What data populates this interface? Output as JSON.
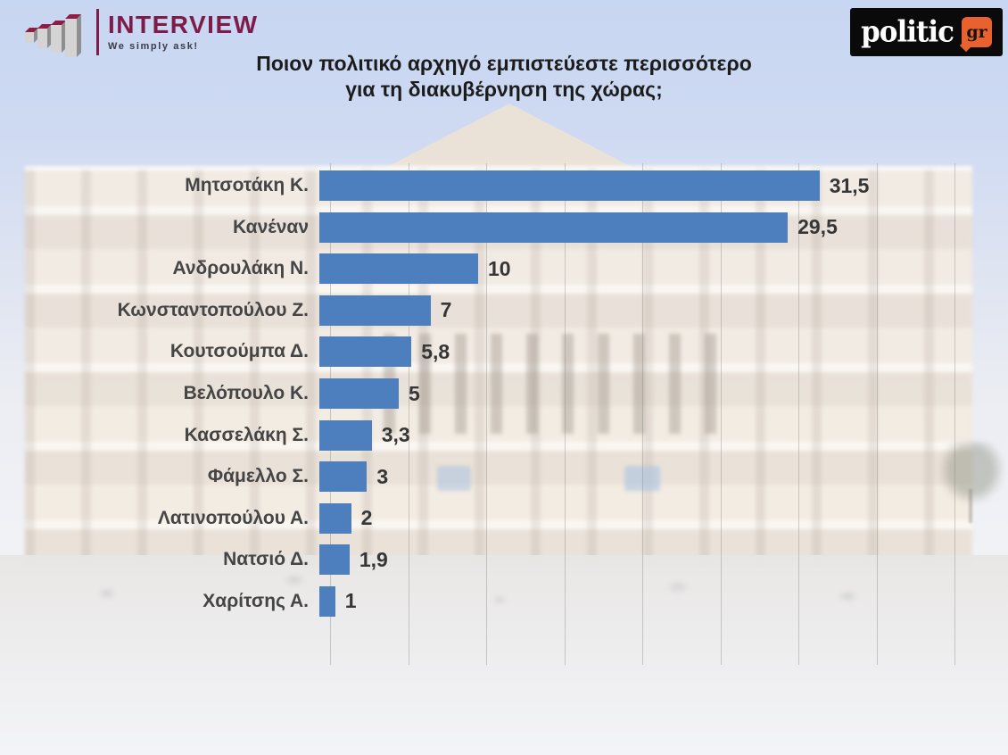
{
  "header": {
    "interview_logo": {
      "name": "INTERVIEW",
      "tagline": "We simply ask!"
    },
    "politic_logo": {
      "word": "politic",
      "badge": "gr"
    },
    "title_line1": "Ποιον πολιτικό αρχηγό εμπιστεύεστε περισσότερο",
    "title_line2": "για τη διακυβέρνηση της χώρας;"
  },
  "chart_data": {
    "type": "bar",
    "orientation": "horizontal",
    "title": "Ποιον πολιτικό αρχηγό εμπιστεύεστε περισσότερο για τη διακυβέρνηση της χώρας;",
    "categories": [
      "Μητσοτάκη Κ.",
      "Κανέναν",
      "Ανδρουλάκη Ν.",
      "Κωνσταντοπούλου Ζ.",
      "Κουτσούμπα Δ.",
      "Βελόπουλο Κ.",
      "Κασσελάκη Σ.",
      "Φάμελλο Σ.",
      "Λατινοπούλου Α.",
      "Νατσιό Δ.",
      "Χαρίτσης Α."
    ],
    "values": [
      31.5,
      29.5,
      10,
      7,
      5.8,
      5,
      3.3,
      3,
      2,
      1.9,
      1
    ],
    "value_labels": [
      "31,5",
      "29,5",
      "10",
      "7",
      "5,8",
      "5",
      "3,3",
      "3",
      "2",
      "1,9",
      "1"
    ],
    "xlabel": "",
    "ylabel": "",
    "xlim": [
      0,
      40
    ],
    "gridline_step": 5,
    "grid": "vertical-only",
    "legend": "none",
    "data_labels": "outside-end"
  },
  "colors": {
    "bar": "#4d7ebd",
    "category_label": "#454545",
    "value_label": "#363636",
    "title": "#1c1c1c",
    "interview_brand": "#7d1c49",
    "politic_box": "#0a0a0a",
    "politic_badge": "#e8612f",
    "gridline": "rgba(128,128,134,0.38)"
  }
}
